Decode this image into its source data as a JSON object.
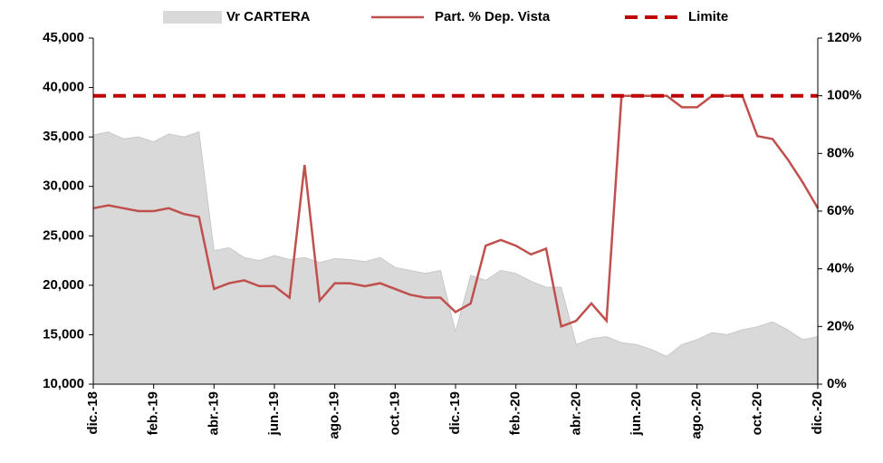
{
  "chart_data": {
    "type": "area-line",
    "categories": [
      "dic.-18",
      null,
      null,
      null,
      "feb.-19",
      null,
      null,
      null,
      "abr.-19",
      null,
      null,
      null,
      "jun.-19",
      null,
      null,
      null,
      "ago.-19",
      null,
      null,
      null,
      "oct.-19",
      null,
      null,
      null,
      "dic.-19",
      null,
      null,
      null,
      "feb.-20",
      null,
      null,
      null,
      "abr.-20",
      null,
      null,
      null,
      "jun.-20",
      null,
      null,
      null,
      "ago.-20",
      null,
      null,
      null,
      "oct.-20",
      null,
      null,
      null,
      "dic.-20"
    ],
    "series": [
      {
        "name": "Vr CARTERA",
        "color": "#d9d9d9",
        "axis": "y",
        "kind": "area",
        "values": [
          35200,
          35500,
          34800,
          35000,
          34500,
          35300,
          35000,
          35500,
          23500,
          23800,
          22800,
          22500,
          23000,
          22600,
          22800,
          22300,
          22700,
          22600,
          22400,
          22800,
          21800,
          21500,
          21200,
          21500,
          15300,
          21000,
          20500,
          21500,
          21200,
          20400,
          19800,
          19800,
          14000,
          14600,
          14800,
          14200,
          14000,
          13500,
          12800,
          14000,
          14500,
          15200,
          15000,
          15500,
          15800,
          16300,
          15500,
          14500,
          14800
        ]
      },
      {
        "name": "Part. % Dep. Vista",
        "color": "#c0504d",
        "axis": "y2",
        "kind": "line",
        "values": [
          61,
          62,
          61,
          60,
          60,
          61,
          59,
          58,
          33,
          35,
          36,
          34,
          34,
          30,
          76,
          29,
          35,
          35,
          34,
          35,
          33,
          31,
          30,
          30,
          25,
          28,
          48,
          50,
          48,
          45,
          47,
          20,
          22,
          28,
          22,
          100,
          100,
          100,
          100,
          96,
          96,
          100,
          100,
          100,
          86,
          85,
          78,
          70,
          61
        ]
      },
      {
        "name": "Limite",
        "color": "#c00000",
        "axis": "y2",
        "kind": "dashed",
        "values": [
          100,
          100,
          100,
          100,
          100,
          100,
          100,
          100,
          100,
          100,
          100,
          100,
          100,
          100,
          100,
          100,
          100,
          100,
          100,
          100,
          100,
          100,
          100,
          100,
          100,
          100,
          100,
          100,
          100,
          100,
          100,
          100,
          100,
          100,
          100,
          100,
          100,
          100,
          100,
          100,
          100,
          100,
          100,
          100,
          100,
          100,
          100,
          100,
          100
        ]
      }
    ],
    "ylim": [
      10000,
      45000
    ],
    "yticks": [
      {
        "value": 10000,
        "label": "10,000"
      },
      {
        "value": 15000,
        "label": "15,000"
      },
      {
        "value": 20000,
        "label": "20,000"
      },
      {
        "value": 25000,
        "label": "25,000"
      },
      {
        "value": 30000,
        "label": "30,000"
      },
      {
        "value": 35000,
        "label": "35,000"
      },
      {
        "value": 40000,
        "label": "40,000"
      },
      {
        "value": 45000,
        "label": "45,000"
      }
    ],
    "y2lim": [
      0,
      120
    ],
    "y2ticks": [
      {
        "value": 0,
        "label": "0%"
      },
      {
        "value": 20,
        "label": "20%"
      },
      {
        "value": 40,
        "label": "40%"
      },
      {
        "value": 60,
        "label": "60%"
      },
      {
        "value": 80,
        "label": "80%"
      },
      {
        "value": 100,
        "label": "100%"
      },
      {
        "value": 120,
        "label": "120%"
      }
    ],
    "legend": "top",
    "grid": false
  }
}
